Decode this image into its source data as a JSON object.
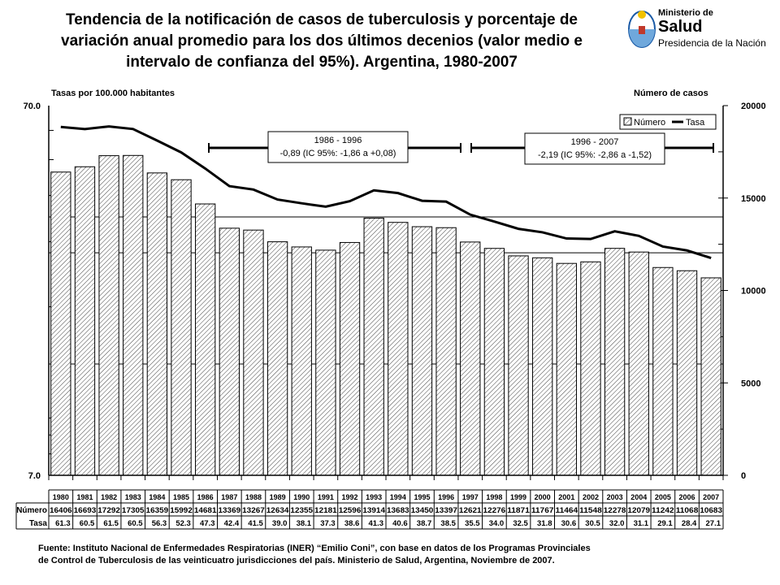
{
  "title_lines": [
    "Tendencia de la notificación de casos de tuberculosis y porcentaje de",
    "variación anual promedio para los dos últimos decenios (valor medio e",
    "intervalo de confianza del 95%). Argentina, 1980-2007"
  ],
  "logo": {
    "line1": "Ministerio de",
    "line2": "Salud",
    "line3": "Presidencia de la Nación"
  },
  "chart_data": {
    "type": "bar",
    "ylabel_left": "Tasas por 100.000 habitantes",
    "ylabel_right": "Número de casos",
    "left_ticks": [
      "70.0",
      "7.0"
    ],
    "right_ticks": [
      "20000",
      "15000",
      "10000",
      "5000",
      "0"
    ],
    "ylim_right": [
      0,
      20000
    ],
    "ylim_left": [
      7,
      70
    ],
    "left_scale": "log",
    "legend": {
      "position": "top-right",
      "bar_label": "Número",
      "line_label": "Tasa"
    },
    "categories": [
      "1980",
      "1981",
      "1982",
      "1983",
      "1984",
      "1985",
      "1986",
      "1987",
      "1988",
      "1989",
      "1990",
      "1991",
      "1992",
      "1993",
      "1994",
      "1995",
      "1996",
      "1997",
      "1998",
      "1999",
      "2000",
      "2001",
      "2002",
      "2003",
      "2004",
      "2005",
      "2006",
      "2007"
    ],
    "series": [
      {
        "name": "Número",
        "type": "bar",
        "values": [
          16406,
          16693,
          17292,
          17305,
          16359,
          15992,
          14681,
          13369,
          13267,
          12634,
          12355,
          12181,
          12596,
          13914,
          13683,
          13450,
          13397,
          12621,
          12276,
          11871,
          11767,
          11464,
          11548,
          12278,
          12079,
          11242,
          11068,
          10683
        ]
      },
      {
        "name": "Tasa",
        "type": "line",
        "values": [
          61.3,
          60.5,
          61.5,
          60.5,
          56.3,
          52.3,
          47.3,
          42.4,
          41.5,
          39.0,
          38.1,
          37.3,
          38.6,
          41.3,
          40.6,
          38.7,
          38.5,
          35.5,
          34.0,
          32.5,
          31.8,
          30.6,
          30.5,
          32.0,
          31.1,
          29.1,
          28.4,
          27.1
        ]
      }
    ],
    "table": {
      "row1_label": "Número",
      "row2_label": "Tasa"
    },
    "annotations": [
      {
        "period": "1986 - 1996",
        "text": "-0,89 (IC 95%: -1,86 a +0,08)"
      },
      {
        "period": "1996 - 2007",
        "text": "-2,19 (IC 95%: -2,86 a -1,52)"
      }
    ],
    "grid": true
  },
  "source_lines": [
    "Fuente: Instituto Nacional de Enfermedades Respiratorias (INER) “Emilio Coni”, con base en datos de los Programas Provinciales",
    "de Control de Tuberculosis de las veinticuatro jurisdicciones del país. Ministerio de Salud, Argentina, Noviembre de 2007."
  ],
  "colors": {
    "bar_stroke": "#000000",
    "bar_fill": "#ffffff",
    "line": "#000000",
    "logo_blue": "#1a5aa6"
  }
}
